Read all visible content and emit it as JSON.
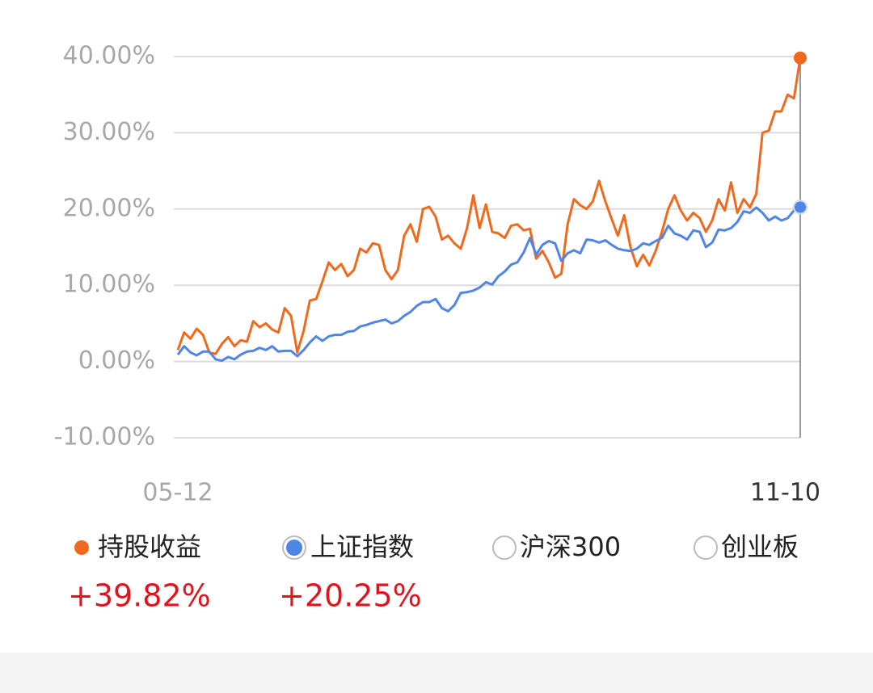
{
  "chart_data": {
    "type": "line",
    "categories": [
      "05-12",
      null,
      null,
      null,
      null,
      null,
      null,
      null,
      null,
      null,
      null,
      null,
      null,
      null,
      null,
      null,
      null,
      null,
      null,
      null,
      null,
      null,
      null,
      null,
      null,
      null,
      null,
      null,
      null,
      null,
      null,
      null,
      null,
      null,
      null,
      null,
      null,
      null,
      null,
      null,
      null,
      null,
      null,
      null,
      null,
      null,
      null,
      null,
      null,
      null,
      null,
      null,
      null,
      null,
      null,
      null,
      null,
      null,
      null,
      null,
      null,
      null,
      null,
      null,
      null,
      null,
      null,
      null,
      null,
      null,
      null,
      null,
      null,
      null,
      null,
      null,
      null,
      null,
      null,
      null,
      null,
      null,
      null,
      null,
      null,
      null,
      null,
      null,
      null,
      null,
      null,
      null,
      null,
      null,
      null,
      null,
      null,
      null,
      null,
      "11-10"
    ],
    "series": [
      {
        "name": "持股收益",
        "color": "#f06a1e",
        "values": [
          1.5,
          3.8,
          3,
          4.3,
          3.5,
          1.2,
          1,
          2.3,
          3.2,
          2,
          2.8,
          2.6,
          5.3,
          4.5,
          5,
          4.2,
          3.8,
          7,
          6,
          1.2,
          4,
          8,
          8.2,
          10.5,
          13,
          12,
          12.8,
          11.2,
          12,
          14.8,
          14.3,
          15.5,
          15.3,
          12,
          10.8,
          12,
          16.5,
          18,
          15.7,
          20,
          20.3,
          19,
          16,
          16.5,
          15.5,
          14.8,
          17.5,
          21.8,
          17.5,
          20.6,
          17,
          16.8,
          16.2,
          17.8,
          18,
          17.2,
          17.4,
          13.5,
          14.5,
          13,
          11,
          11.5,
          18,
          21.3,
          20.5,
          20,
          21,
          23.7,
          21,
          18.7,
          16.5,
          19.2,
          15,
          12.5,
          14,
          12.6,
          14.5,
          17,
          20,
          21.8,
          19.8,
          18.5,
          19.5,
          18.8,
          17,
          18.5,
          21.3,
          19.8,
          23.5,
          19.5,
          21.3,
          20.2,
          22,
          30,
          30.3,
          32.8,
          32.8,
          35,
          34.5,
          39.82
        ],
        "value_labels": [
          null,
          null,
          null,
          null,
          null,
          null,
          null,
          null,
          null,
          null,
          null,
          null,
          null,
          null,
          null,
          null,
          null,
          null,
          null,
          null,
          null,
          null,
          null,
          null,
          null,
          null,
          null,
          null,
          null,
          null,
          null,
          null,
          null,
          null,
          null,
          null,
          null,
          null,
          null,
          null,
          null,
          null,
          null,
          null,
          null,
          null,
          null,
          null,
          null,
          null,
          null,
          null,
          null,
          null,
          null,
          null,
          null,
          null,
          null,
          null,
          null,
          null,
          null,
          null,
          null,
          null,
          null,
          null,
          null,
          null,
          null,
          null,
          null,
          null,
          null,
          null,
          null,
          null,
          null,
          null,
          null,
          null,
          null,
          null,
          null,
          null,
          null,
          null,
          null,
          null,
          null,
          null,
          null,
          null,
          null,
          null,
          null,
          null,
          null,
          "+39.82%"
        ]
      },
      {
        "name": "上证指数",
        "color": "#4f86e6",
        "values": [
          0.9,
          2,
          1.2,
          0.8,
          1.3,
          1.3,
          0.3,
          0.1,
          0.6,
          0.3,
          0.9,
          1.3,
          1.4,
          1.8,
          1.5,
          2,
          1.3,
          1.4,
          1.4,
          0.7,
          1.5,
          2.5,
          3.3,
          2.7,
          3.3,
          3.5,
          3.5,
          3.9,
          4,
          4.6,
          4.8,
          5.1,
          5.3,
          5.5,
          5,
          5.3,
          6,
          6.5,
          7.3,
          7.8,
          7.8,
          8.2,
          7,
          6.6,
          7.4,
          9,
          9.1,
          9.3,
          9.7,
          10.4,
          10.1,
          11.2,
          11.8,
          12.7,
          13,
          14.3,
          16.2,
          14,
          15.3,
          15.8,
          15.5,
          13.2,
          14.2,
          14.6,
          14.2,
          16,
          15.9,
          15.6,
          15.9,
          15.3,
          14.8,
          14.6,
          14.5,
          14.8,
          15.5,
          15.3,
          15.8,
          16.2,
          17.8,
          16.8,
          16.5,
          16,
          17.2,
          17,
          15,
          15.6,
          17.3,
          17.2,
          17.5,
          18.3,
          19.7,
          19.5,
          20.2,
          19.5,
          18.5,
          19,
          18.5,
          18.8,
          19.8,
          20.25
        ],
        "value_labels": [
          null,
          null,
          null,
          null,
          null,
          null,
          null,
          null,
          null,
          null,
          null,
          null,
          null,
          null,
          null,
          null,
          null,
          null,
          null,
          null,
          null,
          null,
          null,
          null,
          null,
          null,
          null,
          null,
          null,
          null,
          null,
          null,
          null,
          null,
          null,
          null,
          null,
          null,
          null,
          null,
          null,
          null,
          null,
          null,
          null,
          null,
          null,
          null,
          null,
          null,
          null,
          null,
          null,
          null,
          null,
          null,
          null,
          null,
          null,
          null,
          null,
          null,
          null,
          null,
          null,
          null,
          null,
          null,
          null,
          null,
          null,
          null,
          null,
          null,
          null,
          null,
          null,
          null,
          null,
          null,
          null,
          null,
          null,
          null,
          null,
          null,
          null,
          null,
          null,
          null,
          null,
          null,
          null,
          null,
          null,
          null,
          null,
          null,
          null,
          "+20.25%"
        ]
      }
    ],
    "legend_options": [
      "沪深300",
      "创业板"
    ],
    "ylim": [
      -10,
      40
    ],
    "yticks": [
      {
        "value": -10,
        "label": "-10.00%"
      },
      {
        "value": 0,
        "label": "0.00%"
      },
      {
        "value": 10,
        "label": "10.00%"
      },
      {
        "value": 20,
        "label": "20.00%"
      },
      {
        "value": 30,
        "label": "30.00%"
      },
      {
        "value": 40,
        "label": "40.00%"
      }
    ],
    "grid": true
  }
}
